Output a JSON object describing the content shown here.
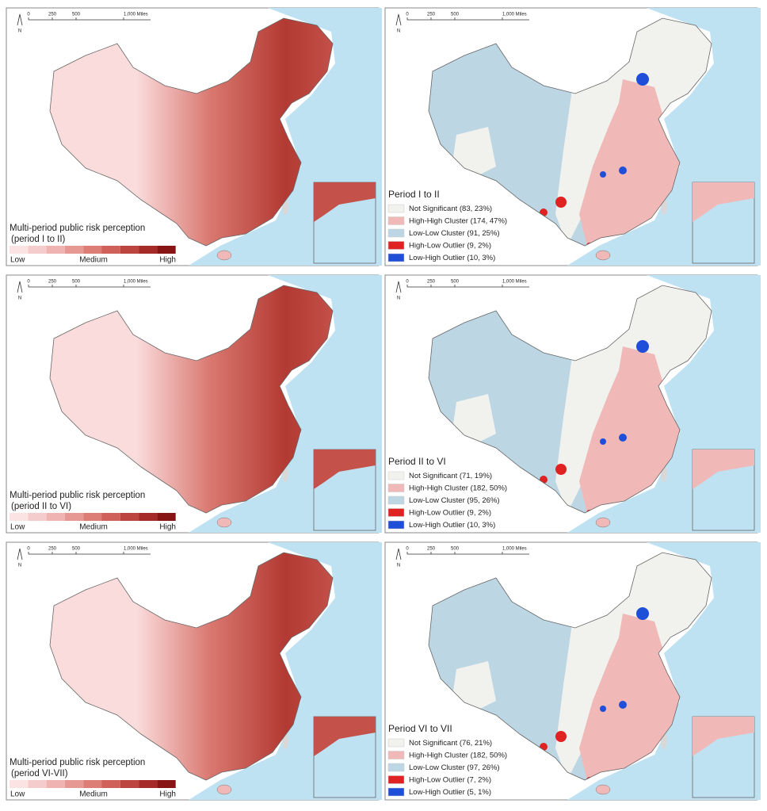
{
  "scale_bar": {
    "labels": [
      "0",
      "250",
      "500",
      "1,000 Miles"
    ],
    "north": "N"
  },
  "ramp_colors": [
    "#fbe3e3",
    "#f5cccc",
    "#efb3b1",
    "#e69893",
    "#dc7d76",
    "#cf615a",
    "#bd4540",
    "#a42b27",
    "#861513"
  ],
  "rows": [
    {
      "left": {
        "title": "Multi-period public risk perception",
        "subtitle": "(period I to II)",
        "low": "Low",
        "medium": "Medium",
        "high": "High"
      },
      "right": {
        "title": "Period I to II",
        "legend": [
          {
            "label": "Not Significant (83, 23%)",
            "color": "#f1f1ee"
          },
          {
            "label": "High-High Cluster (174, 47%)",
            "color": "#f0b8b6"
          },
          {
            "label": "Low-Low Cluster (91, 25%)",
            "color": "#bcd6e4"
          },
          {
            "label": "High-Low Outlier (9, 2%)",
            "color": "#e02222"
          },
          {
            "label": "Low-High Outlier (10, 3%)",
            "color": "#1f4fd8"
          }
        ]
      }
    },
    {
      "left": {
        "title": "Multi-period public risk perception",
        "subtitle": "(period II to VI)",
        "low": "Low",
        "medium": "Medium",
        "high": "High"
      },
      "right": {
        "title": "Period II to VI",
        "legend": [
          {
            "label": "Not Significant (71, 19%)",
            "color": "#f1f1ee"
          },
          {
            "label": "High-High Cluster (182, 50%)",
            "color": "#f0b8b6"
          },
          {
            "label": "Low-Low Cluster (95, 26%)",
            "color": "#bcd6e4"
          },
          {
            "label": "High-Low Outlier (9, 2%)",
            "color": "#e02222"
          },
          {
            "label": "Low-High Outlier (10, 3%)",
            "color": "#1f4fd8"
          }
        ]
      }
    },
    {
      "left": {
        "title": "Multi-period public risk perception",
        "subtitle": "(period VI-VII)",
        "low": "Low",
        "medium": "Medium",
        "high": "High"
      },
      "right": {
        "title": "Period VI to VII",
        "legend": [
          {
            "label": "Not Significant (76, 21%)",
            "color": "#f1f1ee"
          },
          {
            "label": "High-High Cluster (182, 50%)",
            "color": "#f0b8b6"
          },
          {
            "label": "Low-Low Cluster (97, 26%)",
            "color": "#bcd6e4"
          },
          {
            "label": "High-Low Outlier (7, 2%)",
            "color": "#e02222"
          },
          {
            "label": "Low-High Outlier (5, 1%)",
            "color": "#1f4fd8"
          }
        ]
      }
    }
  ]
}
